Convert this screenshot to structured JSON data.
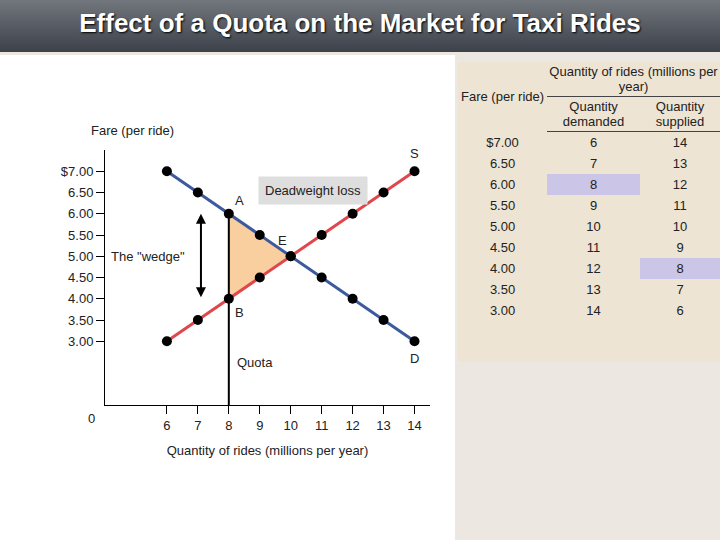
{
  "heading": "Effect of a Quota on the Market for Taxi Rides",
  "chart_data": {
    "type": "line",
    "xlabel": "Quantity of rides (millions per year)",
    "ylabel": "Fare (per ride)",
    "origin_label": "0",
    "xlim": [
      4,
      14.5
    ],
    "xticks": [
      6,
      7,
      8,
      9,
      10,
      11,
      12,
      13,
      14
    ],
    "ylim": [
      1.5,
      7.5
    ],
    "yticks": [
      {
        "value": 3,
        "label": "3.00"
      },
      {
        "value": 3.5,
        "label": "3.50"
      },
      {
        "value": 4,
        "label": "4.00"
      },
      {
        "value": 4.5,
        "label": "4.50"
      },
      {
        "value": 5,
        "label": "5.00"
      },
      {
        "value": 5.5,
        "label": "5.50"
      },
      {
        "value": 6,
        "label": "6.00"
      },
      {
        "value": 6.5,
        "label": "6.50"
      },
      {
        "value": 7,
        "label": "$7.00"
      }
    ],
    "grid": false,
    "marker": "circle",
    "series": [
      {
        "name": "D",
        "color": "#3d5a9e",
        "x": [
          6,
          7,
          8,
          9,
          10,
          11,
          12,
          13,
          14
        ],
        "values": [
          7,
          6.5,
          6,
          5.5,
          5,
          4.5,
          4,
          3.5,
          3
        ]
      },
      {
        "name": "S",
        "color": "#e0474c",
        "x": [
          6,
          7,
          8,
          9,
          10,
          11,
          12,
          13,
          14
        ],
        "values": [
          3,
          3.5,
          4,
          4.5,
          5,
          5.5,
          6,
          6.5,
          7
        ]
      }
    ],
    "points": [
      {
        "label": "A",
        "x": 8,
        "y": 6
      },
      {
        "label": "B",
        "x": 8,
        "y": 4
      },
      {
        "label": "E",
        "x": 10,
        "y": 5
      }
    ],
    "deadweight_loss": {
      "label": "Deadweight loss",
      "x": [
        8,
        8,
        10
      ],
      "y": [
        6,
        4,
        5
      ],
      "color": "#f9cf9f"
    },
    "quota": {
      "label": "Quota",
      "x": 8
    },
    "wedge": {
      "label": "The \"wedge\"",
      "x": 7.1,
      "from": 4,
      "to": 6
    }
  },
  "table": {
    "header": {
      "fare": "Fare (per ride)",
      "group": "Quantity of rides (millions per year)",
      "demanded": "Quantity demanded",
      "supplied": "Quantity supplied"
    },
    "rows": [
      [
        "$7.00",
        "6",
        "14"
      ],
      [
        "6.50",
        "7",
        "13"
      ],
      [
        "6.00",
        "8",
        "12"
      ],
      [
        "5.50",
        "9",
        "11"
      ],
      [
        "5.00",
        "10",
        "10"
      ],
      [
        "4.50",
        "11",
        "9"
      ],
      [
        "4.00",
        "12",
        "8"
      ],
      [
        "3.50",
        "13",
        "7"
      ],
      [
        "3.00",
        "14",
        "6"
      ]
    ],
    "highlight": [
      [
        2,
        1
      ],
      [
        6,
        2
      ]
    ],
    "highlight_color": "#cbc5e8"
  }
}
